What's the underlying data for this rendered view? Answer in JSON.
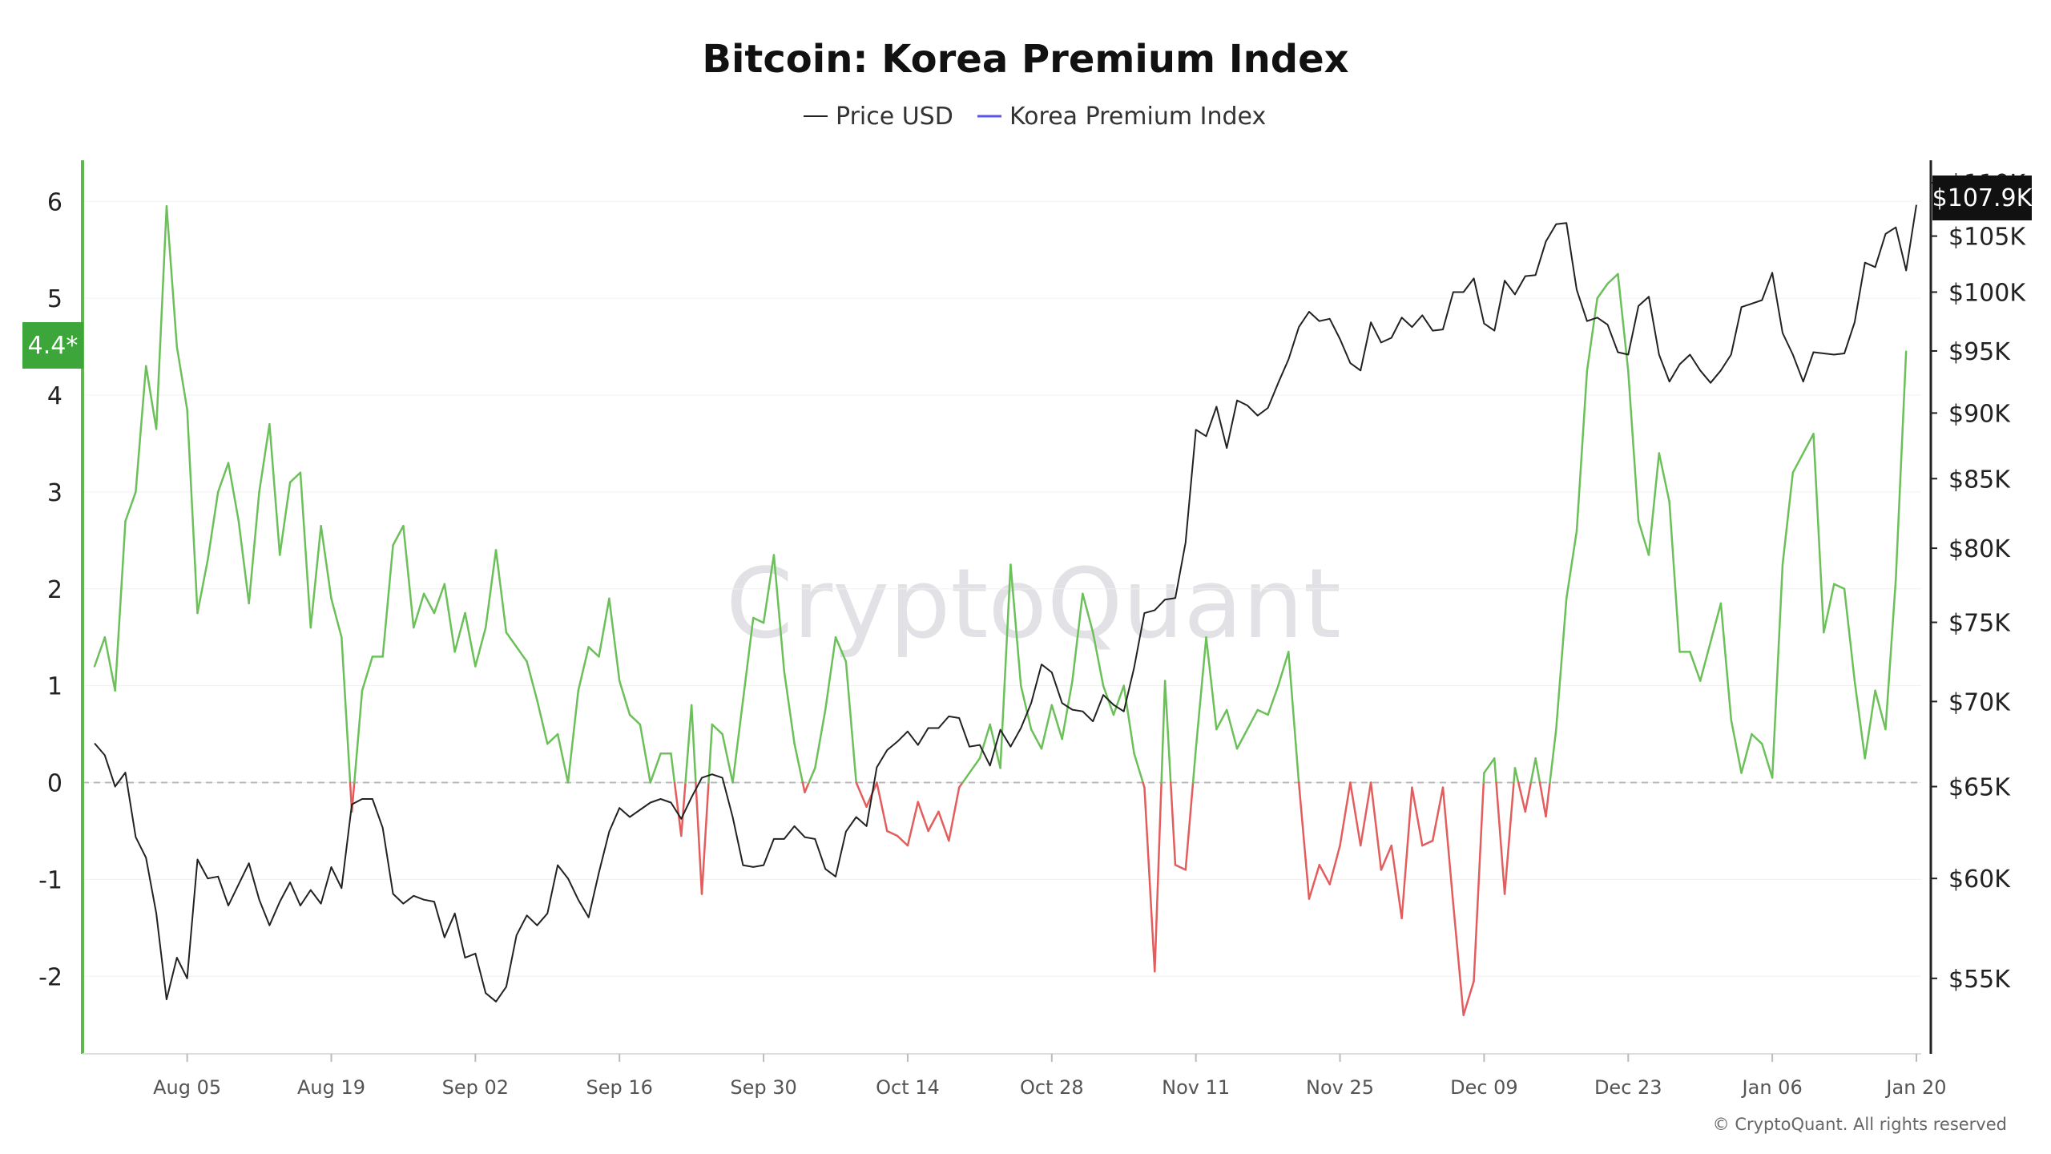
{
  "chart_data": {
    "type": "line",
    "title": "Bitcoin: Korea Premium Index",
    "legend": {
      "placement": "top-center",
      "items": [
        {
          "name": "Price USD",
          "color": "#222222"
        },
        {
          "name": "Korea Premium Index",
          "color": "#5b55e8"
        }
      ]
    },
    "watermark": "CryptoQuant",
    "copyright": "© CryptoQuant. All rights reserved",
    "x_axis": {
      "type": "date",
      "range": [
        "2024-07-27",
        "2025-01-20"
      ],
      "tick_labels": [
        "Aug 05",
        "Aug 19",
        "Sep 02",
        "Sep 16",
        "Sep 30",
        "Oct 14",
        "Oct 28",
        "Nov 11",
        "Nov 25",
        "Dec 09",
        "Dec 23",
        "Jan 06",
        "Jan 20"
      ]
    },
    "y_left": {
      "name": "Korea Premium Index",
      "range": [
        -2.8,
        6.3
      ],
      "tick_labels": [
        "6",
        "5",
        "4",
        "3",
        "2",
        "1",
        "0",
        "-1",
        "-2"
      ],
      "zero_line": true,
      "positive_color": "#6cc05a",
      "negative_color": "#e35d5d",
      "last_value_label": "4.4*"
    },
    "y_right": {
      "name": "Price USD",
      "scale": "log",
      "range": [
        51500,
        111000
      ],
      "tick_labels": [
        "$110K",
        "$105K",
        "$100K",
        "$95K",
        "$90K",
        "$85K",
        "$80K",
        "$75K",
        "$70K",
        "$65K",
        "$60K",
        "$55K"
      ],
      "last_value_label": "$107.9K"
    },
    "grid": true,
    "series": [
      {
        "name": "Korea Premium Index",
        "x_start": "2024-07-27",
        "step_days": 1,
        "values": [
          1.2,
          1.5,
          0.95,
          2.7,
          3.0,
          4.3,
          3.65,
          5.95,
          4.5,
          3.85,
          1.75,
          2.3,
          3.0,
          3.3,
          2.7,
          1.85,
          3.0,
          3.7,
          2.35,
          3.1,
          3.2,
          1.6,
          2.65,
          1.9,
          1.5,
          -0.3,
          0.95,
          1.3,
          1.3,
          2.45,
          2.65,
          1.6,
          1.95,
          1.75,
          2.05,
          1.35,
          1.75,
          1.2,
          1.6,
          2.4,
          1.55,
          1.4,
          1.25,
          0.85,
          0.4,
          0.5,
          0.0,
          0.95,
          1.4,
          1.3,
          1.9,
          1.05,
          0.7,
          0.6,
          0.0,
          0.3,
          0.3,
          -0.55,
          0.8,
          -1.15,
          0.6,
          0.5,
          0.0,
          0.85,
          1.7,
          1.65,
          2.35,
          1.15,
          0.4,
          -0.1,
          0.15,
          0.75,
          1.5,
          1.25,
          0.0,
          -0.25,
          0.0,
          -0.5,
          -0.55,
          -0.65,
          -0.2,
          -0.5,
          -0.3,
          -0.6,
          -0.05,
          0.1,
          0.25,
          0.6,
          0.15,
          2.25,
          1.0,
          0.55,
          0.35,
          0.8,
          0.45,
          1.05,
          1.95,
          1.55,
          1.0,
          0.7,
          1.0,
          0.3,
          -0.05,
          -1.95,
          1.05,
          -0.85,
          -0.9,
          0.35,
          1.5,
          0.55,
          0.75,
          0.35,
          0.55,
          0.75,
          0.7,
          1.0,
          1.35,
          0.0,
          -1.2,
          -0.85,
          -1.05,
          -0.65,
          0.0,
          -0.65,
          0.0,
          -0.9,
          -0.65,
          -1.4,
          -0.05,
          -0.65,
          -0.6,
          -0.05,
          -1.25,
          -2.4,
          -2.05,
          0.1,
          0.25,
          -1.15,
          0.15,
          -0.3,
          0.25,
          -0.35,
          0.55,
          1.9,
          2.6,
          4.25,
          5.0,
          5.15,
          5.25,
          4.25,
          2.7,
          2.35,
          3.4,
          2.9,
          1.35,
          1.35,
          1.05,
          1.45,
          1.85,
          0.65,
          0.1,
          0.5,
          0.4,
          0.05,
          2.25,
          3.2,
          3.4,
          3.6,
          1.55,
          2.05,
          2.0,
          1.05,
          0.25,
          0.95,
          0.55,
          2.1,
          4.45
        ]
      },
      {
        "name": "Price USD",
        "x_start": "2024-07-27",
        "step_days": 1,
        "values": [
          67500,
          66800,
          65000,
          65800,
          62200,
          61100,
          58200,
          54000,
          56000,
          55000,
          61000,
          60000,
          60100,
          58600,
          59700,
          60800,
          58900,
          57600,
          58800,
          59800,
          58600,
          59400,
          58700,
          60600,
          59500,
          64000,
          64300,
          64300,
          62700,
          59200,
          58700,
          59100,
          58900,
          58800,
          57000,
          58200,
          56000,
          56200,
          54300,
          53900,
          54600,
          57100,
          58100,
          57600,
          58200,
          60700,
          60000,
          58900,
          58000,
          60300,
          62500,
          63800,
          63300,
          63700,
          64100,
          64300,
          64100,
          63200,
          64400,
          65500,
          65700,
          65500,
          63300,
          60700,
          60600,
          60700,
          62100,
          62100,
          62800,
          62200,
          62100,
          60500,
          60100,
          62500,
          63300,
          62800,
          66100,
          67100,
          67600,
          68200,
          67400,
          68400,
          68400,
          69100,
          69000,
          67300,
          67400,
          66200,
          68300,
          67300,
          68400,
          69900,
          72300,
          71800,
          69900,
          69500,
          69400,
          68800,
          70400,
          69800,
          69400,
          72100,
          75600,
          75800,
          76500,
          76600,
          80400,
          88700,
          88200,
          90500,
          87300,
          91000,
          90600,
          89800,
          90400,
          92400,
          94300,
          97000,
          98300,
          97500,
          97700,
          96000,
          94000,
          93400,
          97400,
          95700,
          96100,
          97800,
          97000,
          98000,
          96700,
          96800,
          100000,
          100000,
          101200,
          97300,
          96700,
          101000,
          99800,
          101400,
          101500,
          104500,
          106100,
          106200,
          100200,
          97500,
          97800,
          97200,
          94900,
          94700,
          98800,
          99600,
          94700,
          92500,
          93900,
          94700,
          93400,
          92400,
          93400,
          94700,
          98700,
          99000,
          99300,
          101700,
          96500,
          94700,
          92500,
          94900,
          94800,
          94700,
          94800,
          97400,
          102600,
          102200,
          105200,
          105800,
          101900,
          107900
        ]
      }
    ]
  }
}
